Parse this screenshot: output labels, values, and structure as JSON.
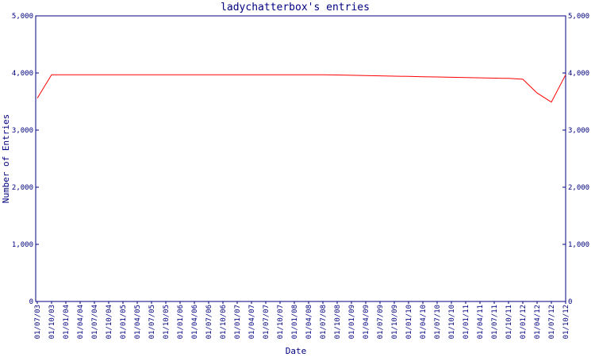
{
  "chart_data": {
    "type": "line",
    "title": "ladychatterbox's entries",
    "x_label": "Date",
    "y_label": "Number of Entries",
    "categories": [
      "01/07/03",
      "01/10/03",
      "01/01/04",
      "01/04/04",
      "01/07/04",
      "01/10/04",
      "01/01/05",
      "01/04/05",
      "01/07/05",
      "01/10/05",
      "01/01/06",
      "01/04/06",
      "01/07/06",
      "01/10/06",
      "01/01/07",
      "01/04/07",
      "01/07/07",
      "01/10/07",
      "01/01/08",
      "01/04/08",
      "01/07/08",
      "01/10/08",
      "01/01/09",
      "01/04/09",
      "01/07/09",
      "01/10/09",
      "01/01/10",
      "01/04/10",
      "01/07/10",
      "01/10/10",
      "01/01/11",
      "01/04/11",
      "01/07/11",
      "01/10/11",
      "01/01/12",
      "01/04/12",
      "01/07/12",
      "01/10/12"
    ],
    "values": [
      3560,
      3970,
      3970,
      3970,
      3970,
      3970,
      3970,
      3970,
      3970,
      3970,
      3970,
      3970,
      3970,
      3970,
      3970,
      3970,
      3970,
      3970,
      3970,
      3970,
      3970,
      3965,
      3960,
      3955,
      3950,
      3945,
      3940,
      3935,
      3930,
      3925,
      3920,
      3915,
      3910,
      3905,
      3890,
      3650,
      3490,
      3970
    ],
    "color": "#ff0000",
    "axis_color": "#000080",
    "ylim": [
      0,
      5000
    ],
    "yticks": [
      0,
      {
        "value": 1000,
        "label": "1,000"
      },
      {
        "value": 2000,
        "label": "2,000"
      },
      {
        "value": 3000,
        "label": "3,000"
      },
      {
        "value": 4000,
        "label": "4,000"
      },
      {
        "value": 5000,
        "label": "5,000"
      }
    ],
    "y2lim": [
      0,
      5000
    ],
    "y2ticks": [
      0,
      {
        "value": 1000,
        "label": "1,000"
      },
      {
        "value": 2000,
        "label": "2,000"
      },
      {
        "value": 3000,
        "label": "3,000"
      },
      {
        "value": 4000,
        "label": "4,000"
      },
      {
        "value": 5000,
        "label": "5,000"
      }
    ]
  }
}
